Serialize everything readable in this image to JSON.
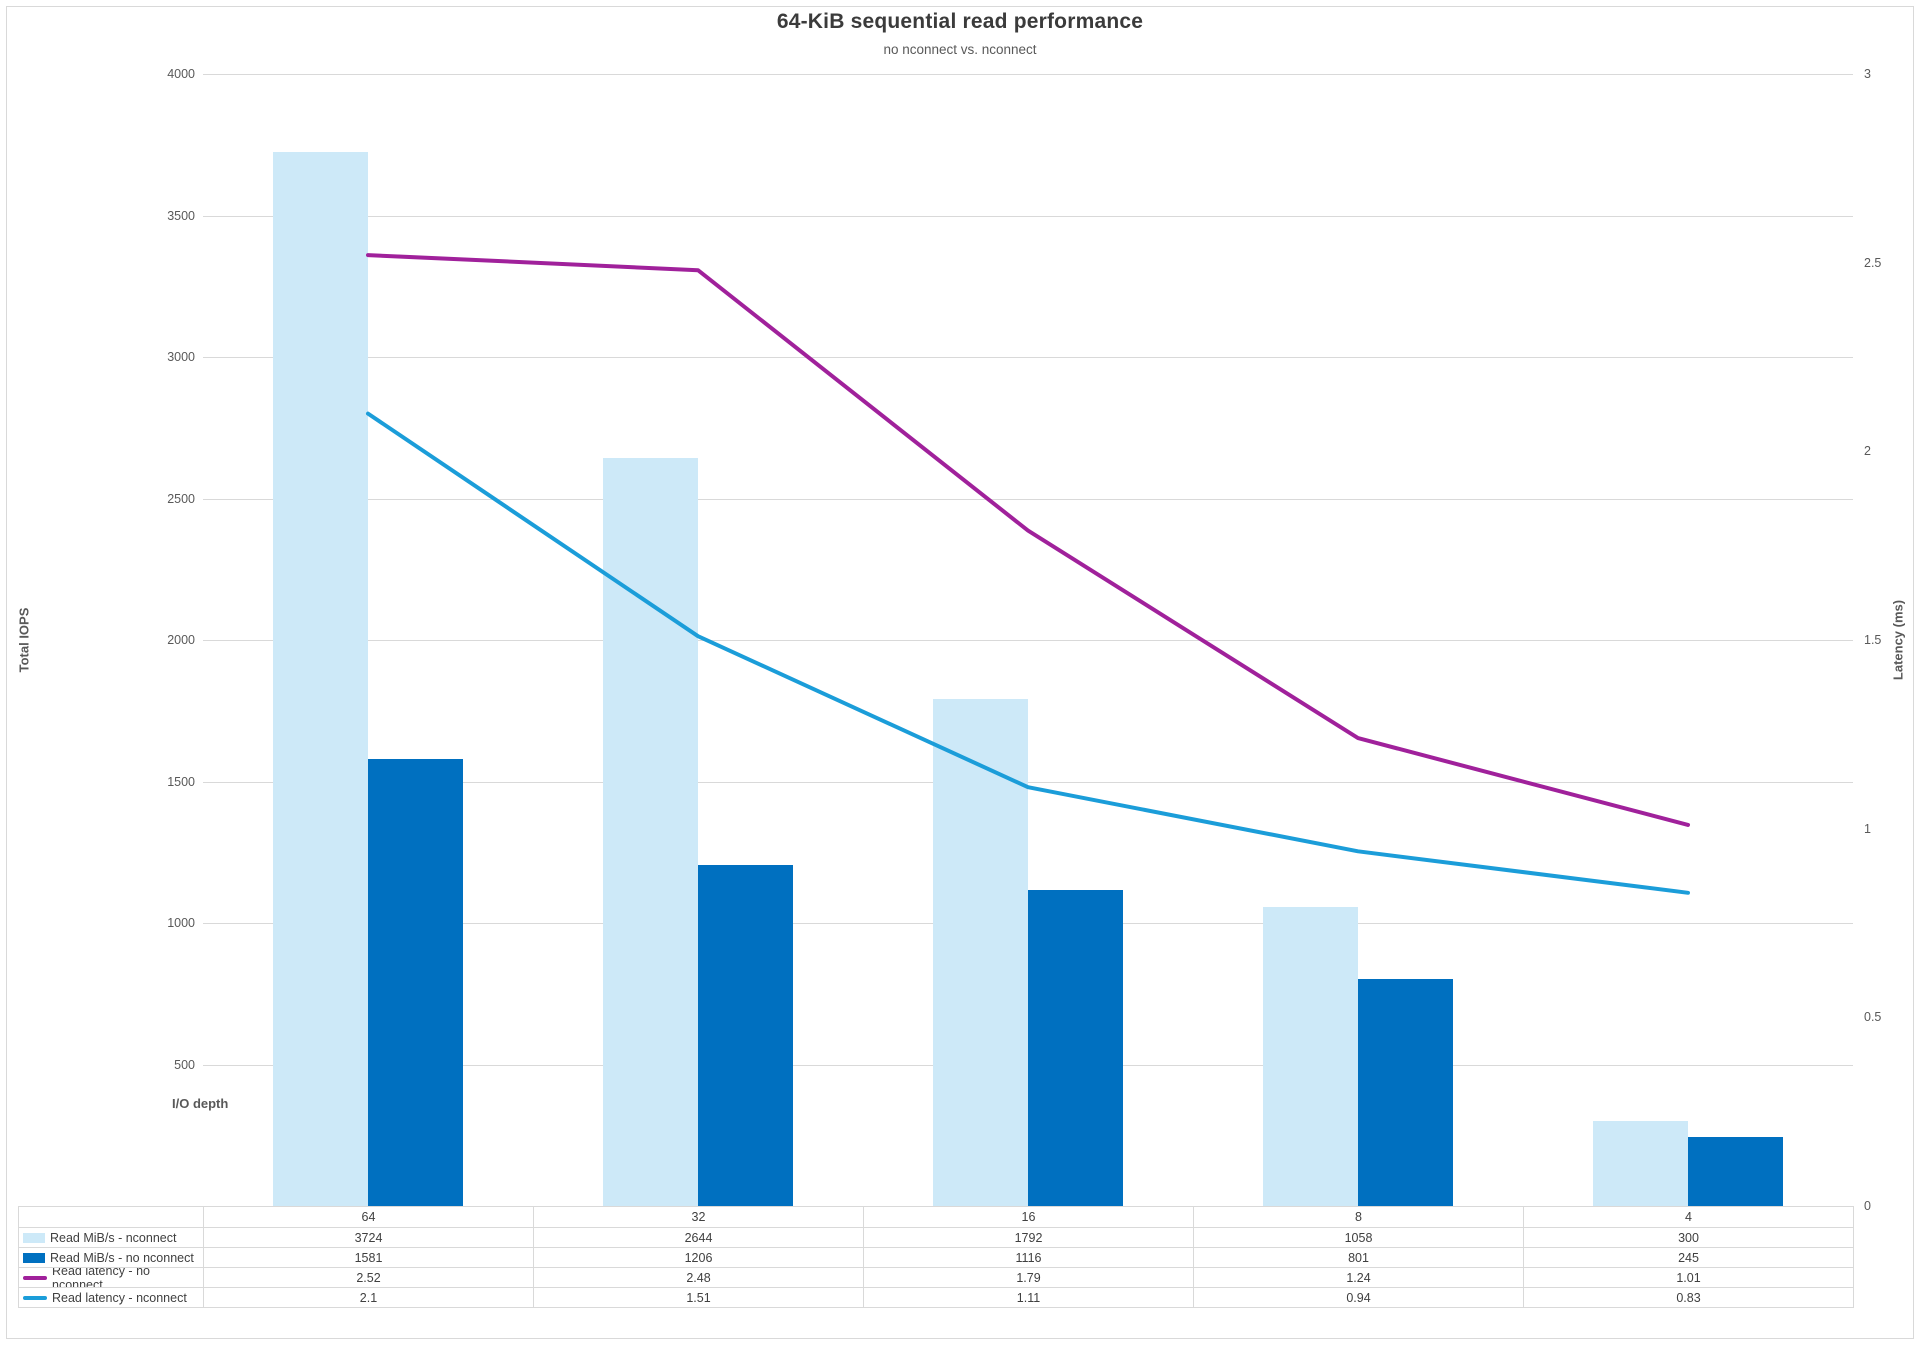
{
  "title": "64-KiB sequential read performance",
  "subtitle": "no nconnect vs. nconnect",
  "colors": {
    "bar_nconnect": "#CDE9F8",
    "bar_no_nconnect": "#0070C0",
    "line_no_nconnect": "#A0219B",
    "line_nconnect": "#1B9DD9",
    "gridline": "#d9d9d9",
    "text_muted": "#595959",
    "text_table": "#404040"
  },
  "chart_data": {
    "type": "combo-bar-line",
    "title": "64-KiB sequential read performance",
    "subtitle": "no nconnect vs. nconnect",
    "categories": [
      "64",
      "32",
      "16",
      "8",
      "4"
    ],
    "x_axis_title": "I/O depth",
    "y_left": {
      "title": "Total IOPS",
      "min": 0,
      "max": 4000,
      "tick_step": 500,
      "tick_labels": [
        "4000",
        "3500",
        "3000",
        "2500",
        "2000",
        "1500",
        "1000",
        "500"
      ]
    },
    "y_right": {
      "title": "Latency (ms)",
      "min": 0,
      "max": 3,
      "tick_step": 0.5,
      "tick_labels": [
        "3",
        "2.5",
        "2",
        "1.5",
        "1",
        "0.5",
        "0"
      ]
    },
    "grid": true,
    "legend_position": "table-left-column",
    "series": [
      {
        "name": "Read MiB/s - nconnect",
        "type": "bar",
        "axis": "left",
        "color": "#CDE9F8",
        "values": [
          3724,
          2644,
          1792,
          1058,
          300
        ]
      },
      {
        "name": "Read MiB/s - no nconnect",
        "type": "bar",
        "axis": "left",
        "color": "#0070C0",
        "values": [
          1581,
          1206,
          1116,
          801,
          245
        ]
      },
      {
        "name": "Read latency - no nconnect",
        "type": "line",
        "axis": "right",
        "color": "#A0219B",
        "values": [
          2.52,
          2.48,
          1.79,
          1.24,
          1.01
        ]
      },
      {
        "name": "Read latency - nconnect",
        "type": "line",
        "axis": "right",
        "color": "#1B9DD9",
        "values": [
          2.1,
          1.51,
          1.11,
          0.94,
          0.83
        ]
      }
    ]
  }
}
